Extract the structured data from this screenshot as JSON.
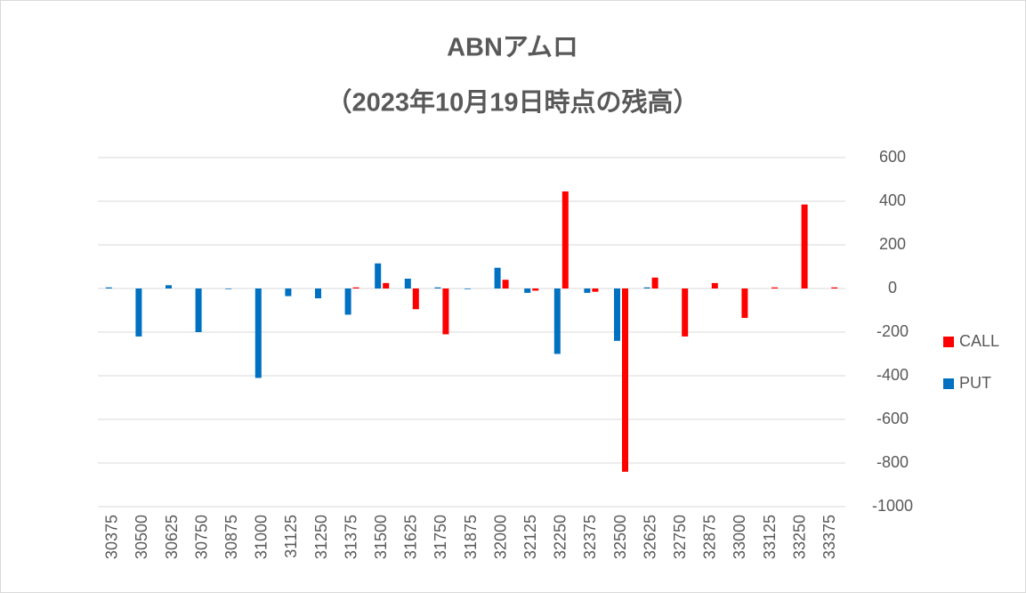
{
  "chart_data": {
    "type": "bar",
    "title": "ABNアムロ",
    "subtitle": "（2023年10月19日時点の残高）",
    "categories": [
      "30375",
      "30500",
      "30625",
      "30750",
      "30875",
      "31000",
      "31125",
      "31250",
      "31375",
      "31500",
      "31625",
      "31750",
      "31875",
      "32000",
      "32125",
      "32250",
      "32375",
      "32500",
      "32625",
      "32750",
      "32875",
      "33000",
      "33125",
      "33250",
      "33375"
    ],
    "series": [
      {
        "name": "CALL",
        "color": "#ff0000",
        "values": [
          0,
          0,
          0,
          0,
          0,
          0,
          0,
          0,
          5,
          25,
          -95,
          -210,
          0,
          40,
          -10,
          445,
          -15,
          -840,
          50,
          -220,
          25,
          -135,
          5,
          385,
          5
        ]
      },
      {
        "name": "PUT",
        "color": "#0070c0",
        "values": [
          5,
          -220,
          15,
          -200,
          -3,
          -410,
          -35,
          -45,
          -120,
          115,
          45,
          5,
          -3,
          95,
          -20,
          -300,
          -20,
          -240,
          5,
          0,
          0,
          0,
          0,
          0,
          0
        ]
      }
    ],
    "ylim": [
      -1000,
      600
    ],
    "yticks": [
      -1000,
      -800,
      -600,
      -400,
      -200,
      0,
      200,
      400,
      600
    ],
    "grid": true,
    "legend": "right"
  }
}
